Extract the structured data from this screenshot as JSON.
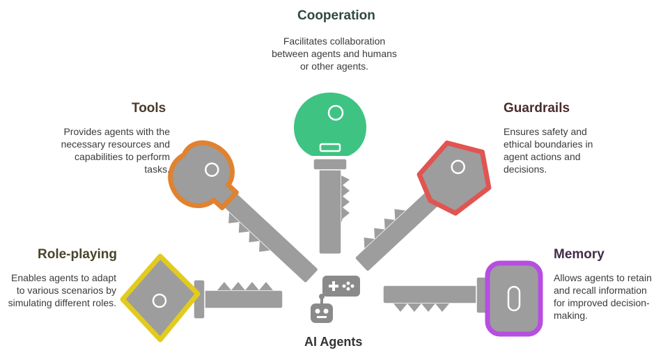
{
  "center": {
    "label": "AI Agents"
  },
  "items": {
    "cooperation": {
      "title": "Cooperation",
      "desc": "Facilitates collaboration between agents and humans or other agents.",
      "color": "#3ec383",
      "title_color": "#2f4a3e"
    },
    "tools": {
      "title": "Tools",
      "desc": "Provides agents with the necessary resources and capabilities to perform tasks.",
      "color": "#e0822f",
      "title_color": "#4a3a2c"
    },
    "guardrails": {
      "title": "Guardrails",
      "desc": "Ensures safety and ethical boundaries in agent actions and decisions.",
      "color": "#e05552",
      "title_color": "#4a2c2c"
    },
    "role_playing": {
      "title": "Role-playing",
      "desc": "Enables agents to adapt to various scenarios by simulating different roles.",
      "color": "#e2cb1e",
      "title_color": "#4a4429"
    },
    "memory": {
      "title": "Memory",
      "desc": "Allows agents to retain and recall information for improved decision-making.",
      "color": "#b64ee0",
      "title_color": "#3f2c4a"
    }
  },
  "key_gray": "#9d9d9d",
  "icon_gray": "#8a8a8a"
}
